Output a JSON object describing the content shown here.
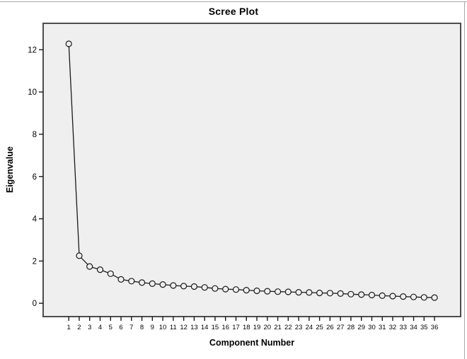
{
  "figure": {
    "outer_border_color": "#a8a8a8"
  },
  "chart_data": {
    "type": "line",
    "title": "Scree Plot",
    "xlabel": "Component Number",
    "ylabel": "Eigenvalue",
    "x": [
      1,
      2,
      3,
      4,
      5,
      6,
      7,
      8,
      9,
      10,
      11,
      12,
      13,
      14,
      15,
      16,
      17,
      18,
      19,
      20,
      21,
      22,
      23,
      24,
      25,
      26,
      27,
      28,
      29,
      30,
      31,
      32,
      33,
      34,
      35,
      36
    ],
    "series": [
      {
        "name": "Eigenvalue",
        "values": [
          12.28,
          2.25,
          1.74,
          1.59,
          1.4,
          1.13,
          1.05,
          0.98,
          0.93,
          0.89,
          0.84,
          0.81,
          0.79,
          0.75,
          0.7,
          0.67,
          0.65,
          0.62,
          0.59,
          0.57,
          0.55,
          0.54,
          0.52,
          0.51,
          0.49,
          0.48,
          0.46,
          0.43,
          0.41,
          0.39,
          0.36,
          0.34,
          0.32,
          0.3,
          0.28,
          0.27
        ]
      }
    ],
    "x_tick_labels": [
      "1",
      "2",
      "3",
      "4",
      "5",
      "6",
      "7",
      "8",
      "9",
      "10",
      "11",
      "12",
      "13",
      "14",
      "15",
      "16",
      "17",
      "18",
      "19",
      "20",
      "21",
      "22",
      "23",
      "24",
      "25",
      "26",
      "27",
      "28",
      "29",
      "30",
      "31",
      "32",
      "33",
      "34",
      "35",
      "36"
    ],
    "y_ticks": [
      0,
      2,
      4,
      6,
      8,
      10,
      12
    ],
    "xlim": [
      -1.45,
      38.5
    ],
    "ylim": [
      -0.63,
      13.25
    ],
    "grid": false,
    "legend": "none",
    "marker": "open-circle",
    "colors": {
      "plot_background": "#efefef",
      "frame": "#4d4d4d",
      "line": "#1a1a1a",
      "marker_stroke": "#1a1a1a",
      "marker_fill": "#efefef",
      "tick": "#1a1a1a",
      "text": "#000000"
    }
  }
}
